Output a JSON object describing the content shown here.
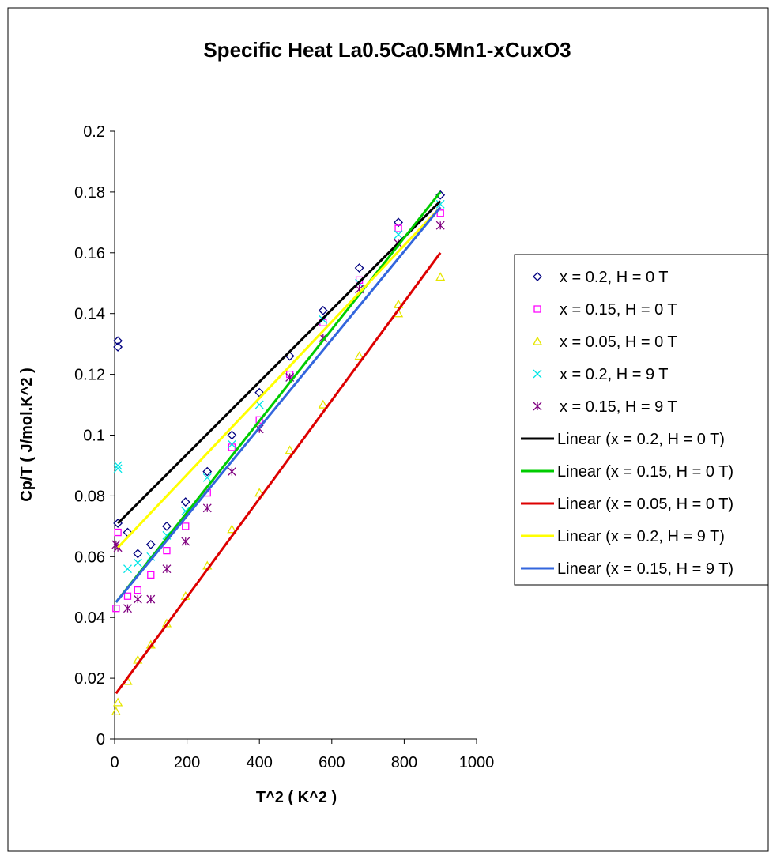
{
  "chart_data": {
    "type": "scatter",
    "title": "Specific Heat La0.5Ca0.5Mn1-xCuxO3",
    "x_label": "T^2 ( K^2 )",
    "y_label": "Cp/T ( J/mol.K^2 )",
    "xlim": [
      0,
      1000
    ],
    "xticks": [
      0,
      200,
      400,
      600,
      800,
      1000
    ],
    "ylim": [
      0,
      0.2
    ],
    "yticks": [
      0,
      0.02,
      0.04,
      0.06,
      0.08,
      0.1,
      0.12,
      0.14,
      0.16,
      0.18,
      0.2
    ],
    "legend": "right",
    "series": [
      {
        "name": "x = 0.2, H = 0 T",
        "mode": "markers",
        "marker": "diamond",
        "color": "#000080",
        "x": [
          9,
          9,
          9,
          36,
          64,
          100,
          144,
          196,
          256,
          324,
          400,
          484,
          576,
          676,
          784,
          900
        ],
        "values": [
          0.131,
          0.129,
          0.071,
          0.068,
          0.061,
          0.064,
          0.07,
          0.078,
          0.088,
          0.1,
          0.114,
          0.126,
          0.141,
          0.155,
          0.17,
          0.179
        ]
      },
      {
        "name": "x = 0.15, H = 0 T",
        "mode": "markers",
        "marker": "square",
        "color": "#ff00ff",
        "x": [
          4,
          9,
          36,
          64,
          100,
          144,
          196,
          256,
          324,
          400,
          484,
          576,
          676,
          784,
          900
        ],
        "values": [
          0.043,
          0.068,
          0.047,
          0.049,
          0.054,
          0.062,
          0.07,
          0.081,
          0.096,
          0.105,
          0.12,
          0.137,
          0.151,
          0.168,
          0.173
        ]
      },
      {
        "name": "x = 0.05, H = 0 T",
        "mode": "markers",
        "marker": "triangle",
        "color": "#e6e600",
        "x": [
          4,
          9,
          36,
          64,
          100,
          144,
          196,
          256,
          324,
          400,
          484,
          576,
          676,
          784,
          784,
          900
        ],
        "values": [
          0.009,
          0.012,
          0.019,
          0.026,
          0.031,
          0.038,
          0.047,
          0.057,
          0.069,
          0.081,
          0.095,
          0.11,
          0.126,
          0.143,
          0.14,
          0.152
        ]
      },
      {
        "name": "x = 0.2, H = 9 T",
        "mode": "markers",
        "marker": "cross",
        "color": "#00e5e5",
        "x": [
          9,
          9,
          36,
          64,
          100,
          144,
          196,
          256,
          324,
          400,
          484,
          576,
          676,
          784,
          900
        ],
        "values": [
          0.09,
          0.089,
          0.056,
          0.058,
          0.06,
          0.067,
          0.075,
          0.086,
          0.097,
          0.11,
          0.119,
          0.138,
          0.15,
          0.166,
          0.176
        ]
      },
      {
        "name": "x = 0.15, H = 9 T",
        "mode": "markers",
        "marker": "asterisk",
        "color": "#800080",
        "x": [
          4,
          9,
          36,
          64,
          100,
          144,
          196,
          256,
          324,
          400,
          484,
          576,
          676,
          784,
          900
        ],
        "values": [
          0.064,
          0.063,
          0.043,
          0.046,
          0.046,
          0.056,
          0.065,
          0.076,
          0.088,
          0.102,
          0.119,
          0.132,
          0.148,
          0.163,
          0.169
        ]
      },
      {
        "name": "Linear (x = 0.2, H = 0 T)",
        "mode": "line",
        "color": "#000000",
        "x": [
          9,
          900
        ],
        "values": [
          0.071,
          0.177
        ]
      },
      {
        "name": "Linear (x = 0.15, H = 0 T)",
        "mode": "line",
        "color": "#00cc00",
        "x": [
          4,
          900
        ],
        "values": [
          0.045,
          0.18
        ]
      },
      {
        "name": "Linear (x = 0.05, H = 0 T)",
        "mode": "line",
        "color": "#dd0000",
        "x": [
          4,
          900
        ],
        "values": [
          0.015,
          0.16
        ]
      },
      {
        "name": "Linear (x = 0.2, H = 9 T)",
        "mode": "line",
        "color": "#ffff00",
        "x": [
          9,
          900
        ],
        "values": [
          0.063,
          0.175
        ]
      },
      {
        "name": "Linear (x = 0.15, H = 9 T)",
        "mode": "line",
        "color": "#3366dd",
        "x": [
          4,
          900
        ],
        "values": [
          0.045,
          0.175
        ]
      }
    ]
  }
}
